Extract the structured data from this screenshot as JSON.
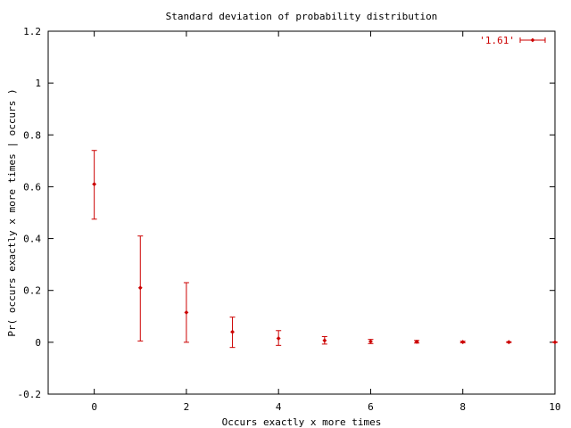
{
  "chart_data": {
    "type": "scatter",
    "title": "Standard deviation of probability distribution",
    "xlabel": "Occurs exactly x more times",
    "ylabel": "Pr( occurs exactly x more times | occurs )",
    "xlim": [
      -1,
      10
    ],
    "ylim": [
      -0.2,
      1.2
    ],
    "xticks": [
      0,
      2,
      4,
      6,
      8,
      10
    ],
    "xtick_labels": [
      "0",
      "2",
      "4",
      "6",
      "8",
      "10"
    ],
    "yticks": [
      -0.2,
      0,
      0.2,
      0.4,
      0.6,
      0.8,
      1,
      1.2
    ],
    "ytick_labels": [
      "-0.2",
      "0",
      "0.2",
      "0.4",
      "0.6",
      "0.8",
      "1",
      "1.2"
    ],
    "grid": false,
    "legend_position": "top-right",
    "colors": {
      "series": "#cc0000",
      "axes": "#000000"
    },
    "series": [
      {
        "name": "'1.61'",
        "style": "errorbars",
        "points": [
          {
            "x": 0,
            "y": 0.61,
            "low": 0.475,
            "high": 0.74
          },
          {
            "x": 1,
            "y": 0.21,
            "low": 0.005,
            "high": 0.41
          },
          {
            "x": 2,
            "y": 0.115,
            "low": 0.0,
            "high": 0.23
          },
          {
            "x": 3,
            "y": 0.04,
            "low": -0.02,
            "high": 0.097
          },
          {
            "x": 4,
            "y": 0.015,
            "low": -0.012,
            "high": 0.045
          },
          {
            "x": 5,
            "y": 0.007,
            "low": -0.007,
            "high": 0.022
          },
          {
            "x": 6,
            "y": 0.003,
            "low": -0.005,
            "high": 0.011
          },
          {
            "x": 7,
            "y": 0.002,
            "low": -0.003,
            "high": 0.007
          },
          {
            "x": 8,
            "y": 0.001,
            "low": -0.002,
            "high": 0.004
          },
          {
            "x": 9,
            "y": 0.0005,
            "low": -0.001,
            "high": 0.002
          },
          {
            "x": 10,
            "y": 0.0002,
            "low": -0.0005,
            "high": 0.001
          }
        ]
      }
    ]
  }
}
